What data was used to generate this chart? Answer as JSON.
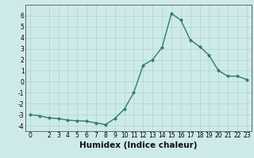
{
  "x": [
    0,
    1,
    2,
    3,
    4,
    5,
    6,
    7,
    8,
    9,
    10,
    11,
    12,
    13,
    14,
    15,
    16,
    17,
    18,
    19,
    20,
    21,
    22,
    23
  ],
  "y": [
    -3.0,
    -3.1,
    -3.3,
    -3.35,
    -3.5,
    -3.55,
    -3.6,
    -3.75,
    -3.9,
    -3.35,
    -2.5,
    -1.0,
    1.5,
    2.0,
    3.1,
    6.2,
    5.6,
    3.8,
    3.2,
    2.4,
    1.0,
    0.5,
    0.5,
    0.2
  ],
  "line_color": "#2d7d6e",
  "marker": "D",
  "marker_size": 2.0,
  "bg_color": "#ceeae8",
  "grid_color": "#b2d8d4",
  "xlabel": "Humidex (Indice chaleur)",
  "ylim": [
    -4.5,
    7.0
  ],
  "xlim": [
    -0.5,
    23.5
  ],
  "yticks": [
    -4,
    -3,
    -2,
    -1,
    0,
    1,
    2,
    3,
    4,
    5,
    6
  ],
  "xticks": [
    0,
    2,
    3,
    4,
    5,
    6,
    7,
    8,
    9,
    10,
    11,
    12,
    13,
    14,
    15,
    16,
    17,
    18,
    19,
    20,
    21,
    22,
    23
  ],
  "tick_fontsize": 5.5,
  "label_fontsize": 7.5,
  "linewidth": 1.0
}
